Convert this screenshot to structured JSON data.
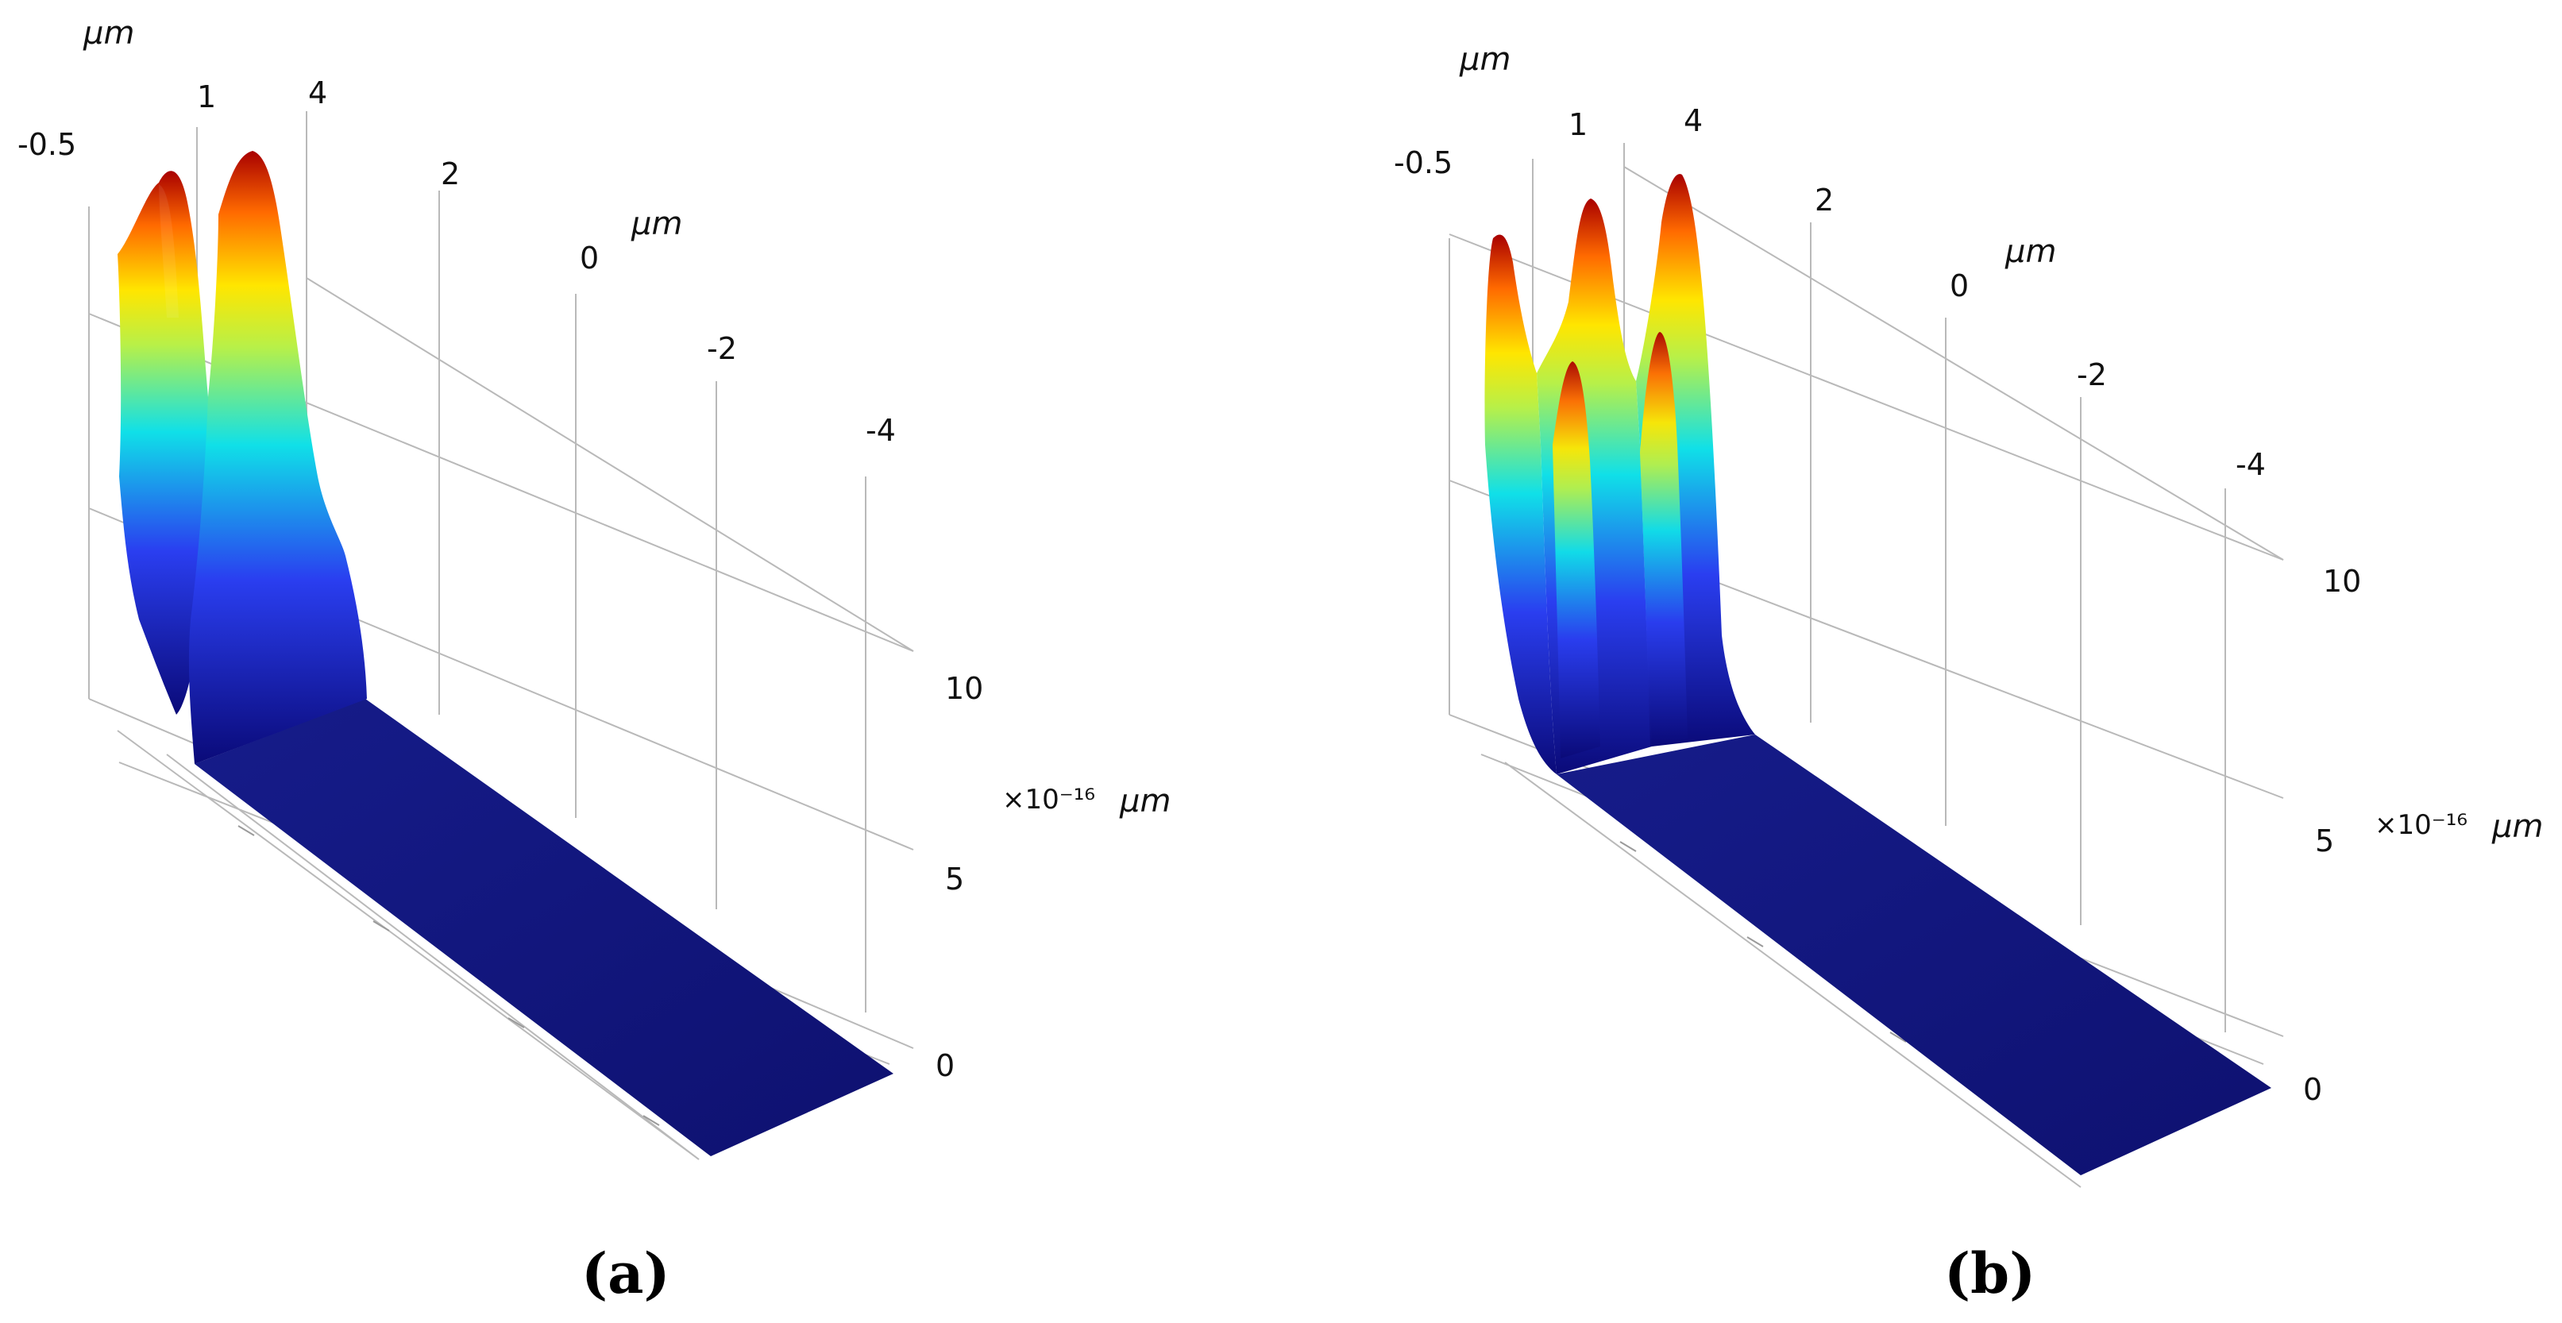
{
  "figure": {
    "panel_labels": [
      "(a)",
      "(b)"
    ]
  },
  "chart_data": [
    {
      "type": "surface",
      "panel": "a",
      "axis_unit": "μm",
      "z_multiplier": "×10⁻¹⁶",
      "z_unit": "μm",
      "x_ticks": [
        "-0.5",
        "1",
        "4"
      ],
      "y_ticks": [
        "2",
        "0",
        "-2",
        "-4"
      ],
      "z_ticks": [
        "0",
        "5",
        "10"
      ],
      "grid": true,
      "colormap": [
        "#00007f",
        "#0000ff",
        "#00ffff",
        "#7fff7f",
        "#ffff00",
        "#ff7f00",
        "#7f0000"
      ],
      "peaks": [
        {
          "position": "first",
          "z_peak": 12.5
        },
        {
          "position": "second",
          "z_peak": 13.5
        }
      ],
      "baseline": 0.4
    },
    {
      "type": "surface",
      "panel": "b",
      "axis_unit": "μm",
      "z_multiplier": "×10⁻¹⁶",
      "z_unit": "μm",
      "x_ticks": [
        "-0.5",
        "1",
        "4"
      ],
      "y_ticks": [
        "2",
        "0",
        "-2",
        "-4"
      ],
      "z_ticks": [
        "0",
        "5",
        "10"
      ],
      "grid": true,
      "colormap": [
        "#00007f",
        "#0000ff",
        "#00ffff",
        "#7fff7f",
        "#ffff00",
        "#ff7f00",
        "#7f0000"
      ],
      "peaks": [
        {
          "position": "first",
          "z_peak": 11.0
        },
        {
          "position": "second",
          "z_peak": 12.0
        },
        {
          "position": "third",
          "z_peak": 12.5
        }
      ],
      "baseline": 0.4
    }
  ]
}
